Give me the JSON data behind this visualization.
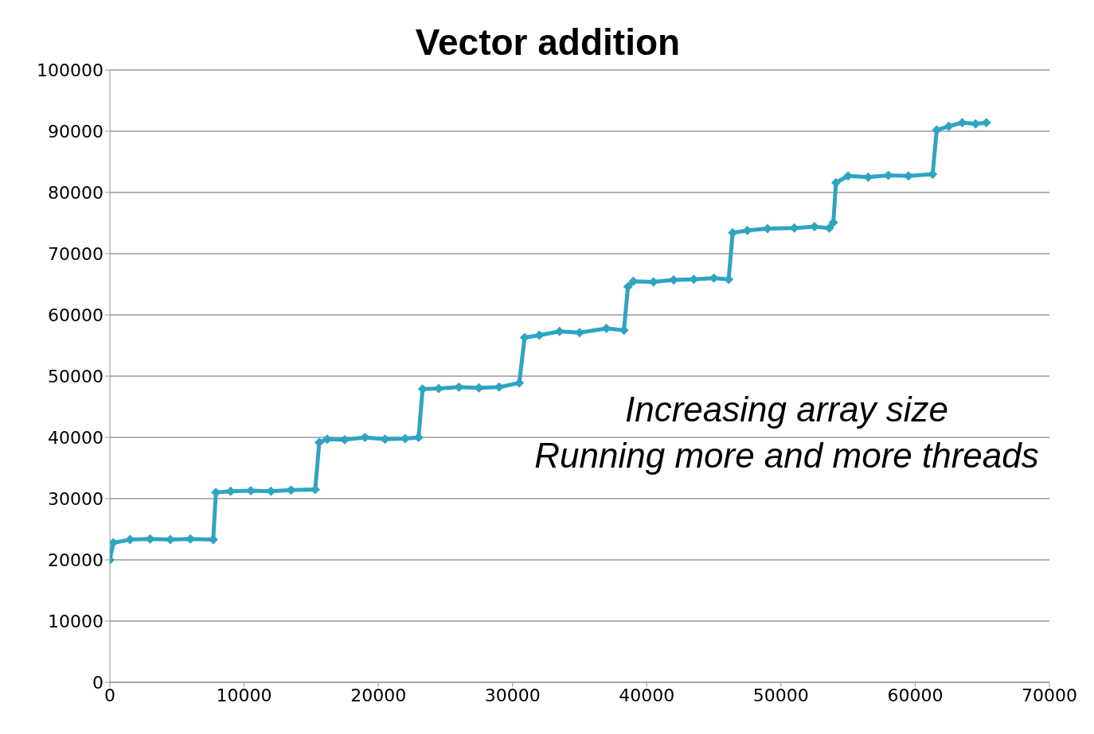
{
  "chart_data": {
    "type": "line",
    "title": "Vector addition",
    "annotations": [
      "Increasing array size",
      "Running more and more threads"
    ],
    "xlim": [
      0,
      70000
    ],
    "xticks": [
      0,
      10000,
      20000,
      30000,
      40000,
      50000,
      60000,
      70000
    ],
    "ylim": [
      0,
      100000
    ],
    "yticks": [
      0,
      10000,
      20000,
      30000,
      40000,
      50000,
      60000,
      70000,
      80000,
      90000,
      100000
    ],
    "grid": "y",
    "marker": "diamond",
    "line_style": "solid",
    "legend": false,
    "series": [
      {
        "color": "#2fa4c2",
        "x": [
          0,
          256,
          1500,
          3000,
          4500,
          6000,
          7700,
          7900,
          9000,
          10500,
          12000,
          13500,
          15300,
          15600,
          16200,
          17500,
          19000,
          20500,
          22000,
          23000,
          23300,
          24500,
          26000,
          27500,
          29000,
          30500,
          30900,
          32000,
          33500,
          35000,
          37000,
          38300,
          38600,
          39000,
          40500,
          42000,
          43500,
          45000,
          46100,
          46400,
          47500,
          49000,
          51000,
          52500,
          53600,
          53900,
          54100,
          55000,
          56500,
          58000,
          59500,
          61300,
          61600,
          62500,
          63500,
          64500,
          65300
        ],
        "values": [
          20000,
          22800,
          23300,
          23400,
          23300,
          23400,
          23300,
          31000,
          31200,
          31300,
          31200,
          31400,
          31500,
          39200,
          39700,
          39600,
          40000,
          39700,
          39800,
          40000,
          47900,
          48000,
          48200,
          48100,
          48200,
          48900,
          56300,
          56700,
          57300,
          57100,
          57800,
          57500,
          64600,
          65500,
          65400,
          65700,
          65800,
          66000,
          65800,
          73400,
          73800,
          74100,
          74200,
          74400,
          74200,
          75100,
          81600,
          82700,
          82500,
          82800,
          82700,
          83000,
          90200,
          90800,
          91400,
          91200,
          91400
        ]
      }
    ]
  }
}
